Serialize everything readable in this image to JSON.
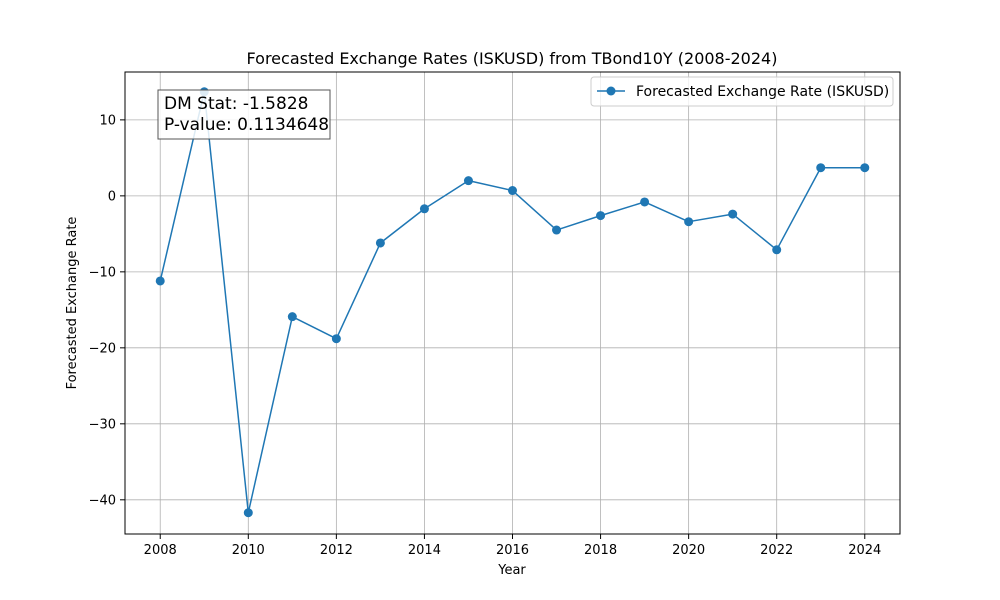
{
  "chart_data": {
    "type": "line",
    "title": "Forecasted Exchange Rates (ISKUSD) from TBond10Y (2008-2024)",
    "xlabel": "Year",
    "ylabel": "Forecasted Exchange Rate",
    "x": [
      2008,
      2009,
      2010,
      2011,
      2012,
      2013,
      2014,
      2015,
      2016,
      2017,
      2018,
      2019,
      2020,
      2021,
      2022,
      2023,
      2024
    ],
    "series": [
      {
        "name": "Forecasted Exchange Rate (ISKUSD)",
        "color": "#1f77b4",
        "values": [
          -11.2,
          13.7,
          -41.7,
          -15.9,
          -18.8,
          -6.2,
          -1.7,
          2.0,
          0.7,
          -4.5,
          -2.6,
          -0.8,
          -3.4,
          -2.4,
          -7.1,
          3.7,
          3.7
        ]
      }
    ],
    "xlim": [
      2007.2,
      2024.8
    ],
    "ylim": [
      -44.5,
      16.3
    ],
    "xticks": [
      2008,
      2010,
      2012,
      2014,
      2016,
      2018,
      2020,
      2022,
      2024
    ],
    "yticks": [
      -40,
      -30,
      -20,
      -10,
      0,
      10
    ],
    "ytick_labels": [
      "−40",
      "−30",
      "−20",
      "−10",
      "0",
      "10"
    ],
    "grid": true,
    "legend_position": "top-right",
    "annotation": {
      "line1": "DM Stat: -1.5828",
      "line2": "P-value: 0.1134648"
    }
  }
}
